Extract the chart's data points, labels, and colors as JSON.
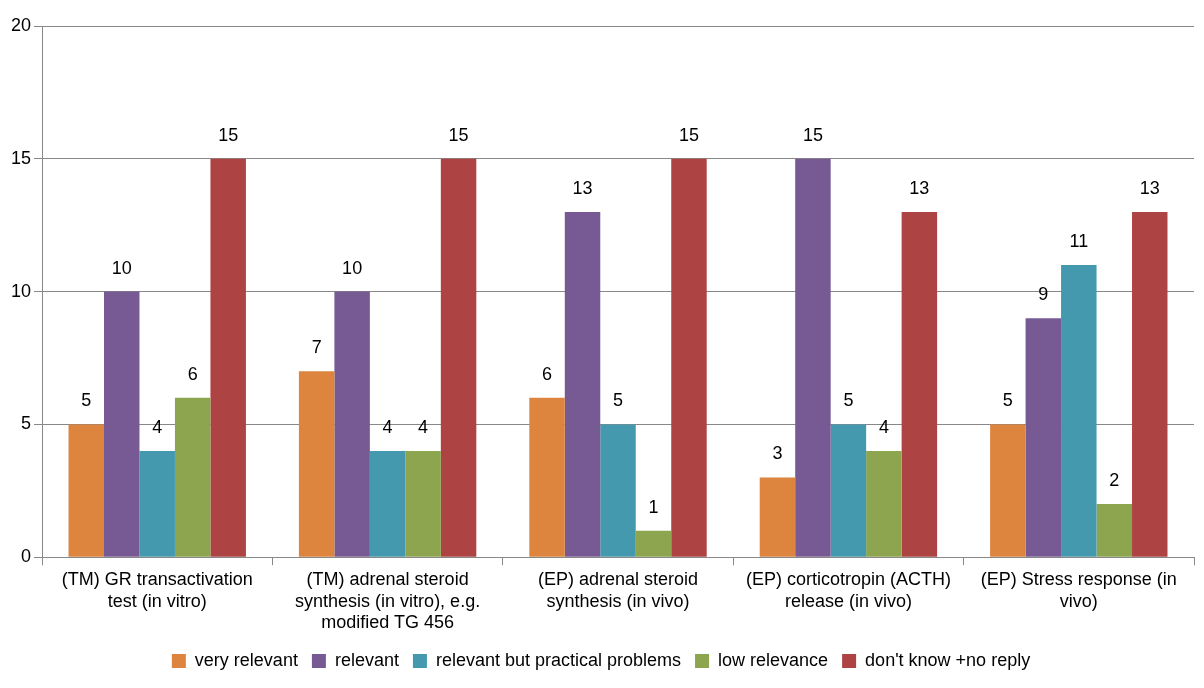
{
  "chart_data": {
    "type": "bar",
    "categories": [
      "(TM) GR transactivation test (in vitro)",
      "(TM) adrenal steroid synthesis (in vitro), e.g. modified TG 456",
      "(EP) adrenal steroid synthesis (in vivo)",
      "(EP) corticotropin (ACTH) release (in vivo)",
      "(EP) Stress response (in vivo)"
    ],
    "series": [
      {
        "name": "very relevant",
        "color": "#dd843e",
        "values": [
          5,
          7,
          6,
          3,
          5
        ]
      },
      {
        "name": "relevant",
        "color": "#775a94",
        "values": [
          10,
          10,
          13,
          15,
          9
        ]
      },
      {
        "name": "relevant but practical problems",
        "color": "#4499ae",
        "values": [
          4,
          4,
          5,
          5,
          11
        ]
      },
      {
        "name": "low relevance",
        "color": "#8ca54e",
        "values": [
          6,
          4,
          1,
          4,
          2
        ]
      },
      {
        "name": "don't know +no reply",
        "color": "#ad4443",
        "values": [
          15,
          15,
          15,
          13,
          13
        ]
      }
    ],
    "ylim": [
      0,
      20
    ],
    "yticks": [
      0,
      5,
      10,
      15,
      20
    ],
    "grid": "y",
    "legend": "bottom",
    "data_labels": true
  }
}
